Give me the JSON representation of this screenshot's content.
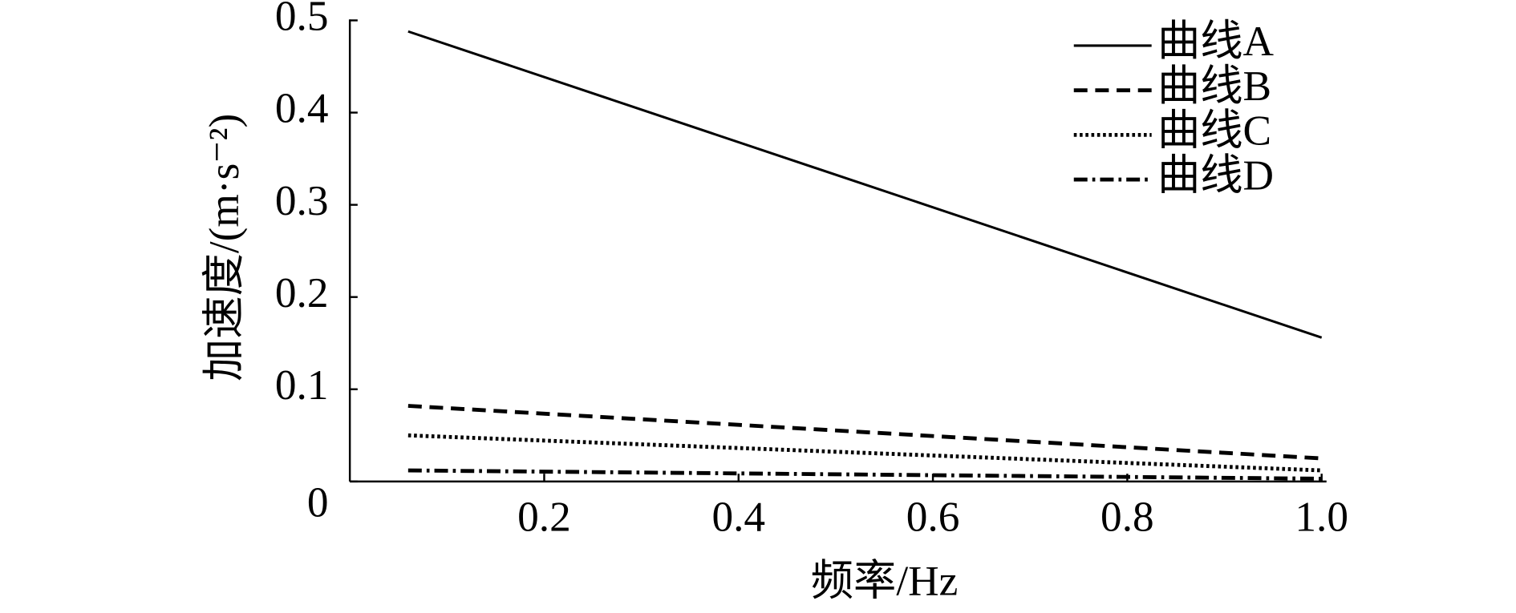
{
  "chart_data": {
    "type": "line",
    "xlabel": "频率/Hz",
    "ylabel": "加速度/(m·s⁻²)",
    "x": [
      0.06,
      1.0
    ],
    "series": [
      {
        "name": "曲线A",
        "color": "#000000",
        "dash": "solid",
        "values": [
          0.488,
          0.156
        ]
      },
      {
        "name": "曲线B",
        "color": "#000000",
        "dash": "dashed",
        "values": [
          0.082,
          0.025
        ]
      },
      {
        "name": "曲线C",
        "color": "#000000",
        "dash": "dotted",
        "values": [
          0.05,
          0.012
        ]
      },
      {
        "name": "曲线D",
        "color": "#000000",
        "dash": "dashdot",
        "values": [
          0.012,
          0.003
        ]
      }
    ],
    "xlim": [
      0,
      1
    ],
    "xticks": [
      0.2,
      0.4,
      0.6,
      0.8,
      {
        "value": 1,
        "label": "1.0"
      }
    ],
    "ylim": [
      0,
      0.5
    ],
    "yticks": [
      0,
      0.1,
      0.2,
      0.3,
      0.4,
      0.5
    ],
    "legend": "upper right",
    "grid": false
  }
}
